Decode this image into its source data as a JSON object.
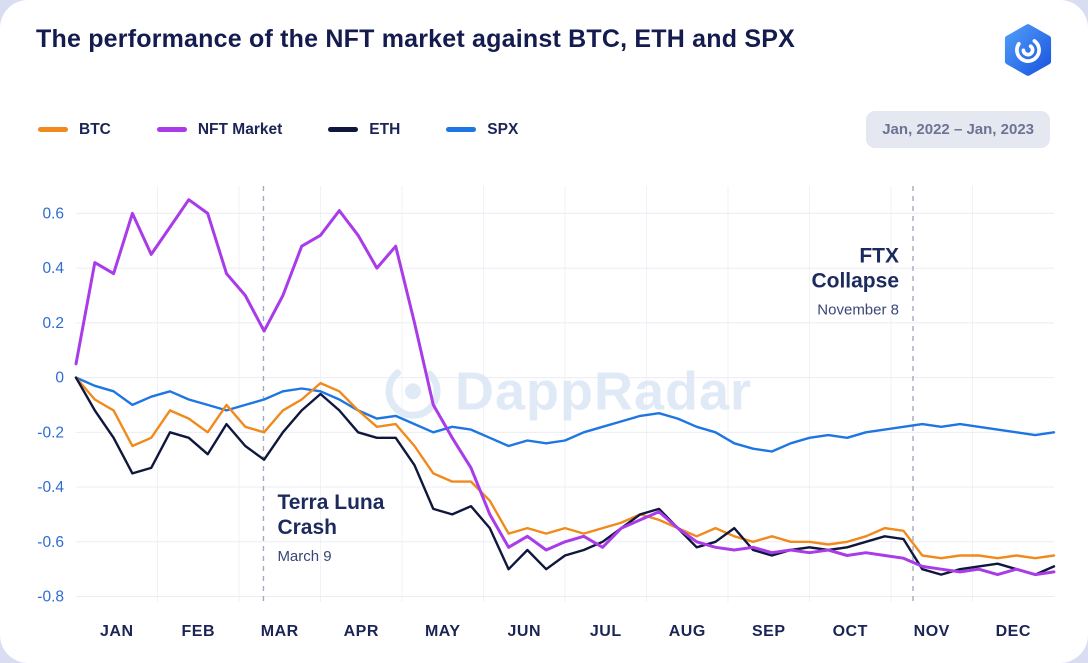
{
  "header": {
    "title": "The performance of the NFT market against BTC, ETH and SPX",
    "date_range": "Jan, 2022 – Jan, 2023"
  },
  "legend": {
    "items": [
      {
        "label": "BTC",
        "color": "#F08A1D"
      },
      {
        "label": "NFT Market",
        "color": "#A93BE8"
      },
      {
        "label": "ETH",
        "color": "#10173D"
      },
      {
        "label": "SPX",
        "color": "#1E76E3"
      }
    ]
  },
  "watermark": {
    "text": "DappRadar"
  },
  "brand": {
    "logo_color_top": "#4f9cf7",
    "logo_color_bottom": "#1c55e0"
  },
  "chart_data": {
    "type": "line",
    "title": "The performance of the NFT market against BTC, ETH and SPX",
    "x_months": [
      "JAN",
      "FEB",
      "MAR",
      "APR",
      "MAY",
      "JUN",
      "JUL",
      "AUG",
      "SEP",
      "OCT",
      "NOV",
      "DEC"
    ],
    "x_unit": "weeks, Jan 2022 – Jan 2023",
    "y_ticks": [
      0.6,
      0.4,
      0.2,
      0,
      -0.2,
      -0.4,
      -0.6,
      -0.8
    ],
    "ylim": [
      -0.82,
      0.7
    ],
    "grid": true,
    "legend_position": "top-left",
    "draw_order": [
      3,
      0,
      2,
      1
    ],
    "series": [
      {
        "name": "BTC",
        "color": "#F08A1D",
        "stroke_width": 2.4,
        "values": [
          0.0,
          -0.08,
          -0.12,
          -0.25,
          -0.22,
          -0.12,
          -0.15,
          -0.2,
          -0.1,
          -0.18,
          -0.2,
          -0.12,
          -0.08,
          -0.02,
          -0.05,
          -0.12,
          -0.18,
          -0.17,
          -0.25,
          -0.35,
          -0.38,
          -0.38,
          -0.45,
          -0.57,
          -0.55,
          -0.57,
          -0.55,
          -0.57,
          -0.55,
          -0.53,
          -0.5,
          -0.52,
          -0.55,
          -0.58,
          -0.55,
          -0.58,
          -0.6,
          -0.58,
          -0.6,
          -0.6,
          -0.61,
          -0.6,
          -0.58,
          -0.55,
          -0.56,
          -0.65,
          -0.66,
          -0.65,
          -0.65,
          -0.66,
          -0.65,
          -0.66,
          -0.65
        ]
      },
      {
        "name": "NFT Market",
        "color": "#A93BE8",
        "stroke_width": 3,
        "values": [
          0.05,
          0.42,
          0.38,
          0.6,
          0.45,
          0.55,
          0.65,
          0.6,
          0.38,
          0.3,
          0.17,
          0.3,
          0.48,
          0.52,
          0.61,
          0.52,
          0.4,
          0.48,
          0.2,
          -0.1,
          -0.22,
          -0.33,
          -0.5,
          -0.62,
          -0.58,
          -0.63,
          -0.6,
          -0.58,
          -0.62,
          -0.55,
          -0.52,
          -0.49,
          -0.55,
          -0.6,
          -0.62,
          -0.63,
          -0.62,
          -0.64,
          -0.63,
          -0.64,
          -0.63,
          -0.65,
          -0.64,
          -0.65,
          -0.66,
          -0.69,
          -0.7,
          -0.71,
          -0.7,
          -0.72,
          -0.7,
          -0.72,
          -0.71
        ]
      },
      {
        "name": "ETH",
        "color": "#10173D",
        "stroke_width": 2.4,
        "values": [
          0.0,
          -0.12,
          -0.22,
          -0.35,
          -0.33,
          -0.2,
          -0.22,
          -0.28,
          -0.17,
          -0.25,
          -0.3,
          -0.2,
          -0.12,
          -0.06,
          -0.12,
          -0.2,
          -0.22,
          -0.22,
          -0.32,
          -0.48,
          -0.5,
          -0.47,
          -0.55,
          -0.7,
          -0.63,
          -0.7,
          -0.65,
          -0.63,
          -0.6,
          -0.55,
          -0.5,
          -0.48,
          -0.55,
          -0.62,
          -0.6,
          -0.55,
          -0.63,
          -0.65,
          -0.63,
          -0.62,
          -0.63,
          -0.62,
          -0.6,
          -0.58,
          -0.59,
          -0.7,
          -0.72,
          -0.7,
          -0.69,
          -0.68,
          -0.7,
          -0.72,
          -0.69
        ]
      },
      {
        "name": "SPX",
        "color": "#1E76E3",
        "stroke_width": 2.4,
        "values": [
          0.0,
          -0.03,
          -0.05,
          -0.1,
          -0.07,
          -0.05,
          -0.08,
          -0.1,
          -0.12,
          -0.1,
          -0.08,
          -0.05,
          -0.04,
          -0.05,
          -0.08,
          -0.12,
          -0.15,
          -0.14,
          -0.17,
          -0.2,
          -0.18,
          -0.19,
          -0.22,
          -0.25,
          -0.23,
          -0.24,
          -0.23,
          -0.2,
          -0.18,
          -0.16,
          -0.14,
          -0.13,
          -0.15,
          -0.18,
          -0.2,
          -0.24,
          -0.26,
          -0.27,
          -0.24,
          -0.22,
          -0.21,
          -0.22,
          -0.2,
          -0.19,
          -0.18,
          -0.17,
          -0.18,
          -0.17,
          -0.18,
          -0.19,
          -0.2,
          -0.21,
          -0.2
        ]
      }
    ],
    "annotations": [
      {
        "title": "Terra Luna Crash",
        "title_lines": [
          "Terra Luna",
          "Crash"
        ],
        "subtitle": "March 9",
        "x_month": 2.3,
        "side": "right",
        "y_value": -0.48
      },
      {
        "title": "FTX Collapse",
        "title_lines": [
          "FTX",
          "Collapse"
        ],
        "subtitle": "November 8",
        "x_month": 10.27,
        "side": "left",
        "y_value": 0.42
      }
    ]
  }
}
